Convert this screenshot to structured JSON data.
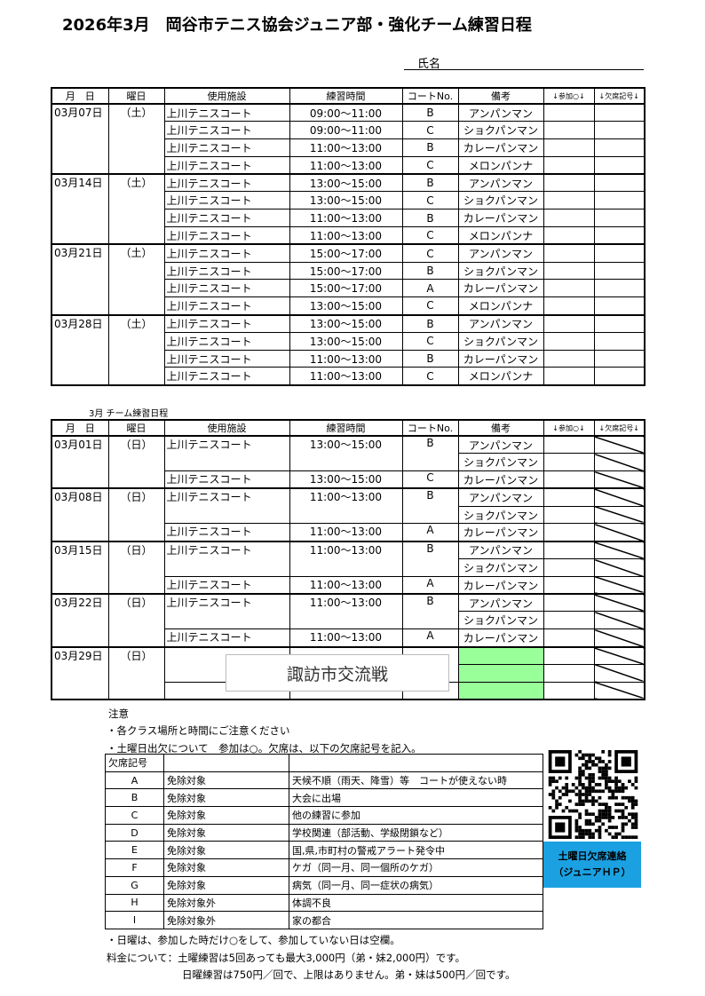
{
  "title": "2026年3月　岡谷市テニス協会ジュニア部・強化チーム練習日程",
  "name_label": "氏名",
  "headers": [
    "月　日",
    "曜日",
    "使用施設",
    "練習時間",
    "コートNo.",
    "備考",
    "↓参加○↓",
    "↓欠席記号↓"
  ],
  "saturday": [
    {
      "date": "03月07日",
      "day": "（土）",
      "rows": [
        {
          "facility": "上川テニスコート",
          "time": "09:00～11:00",
          "court": "B",
          "note": "アンパンマン"
        },
        {
          "facility": "上川テニスコート",
          "time": "09:00～11:00",
          "court": "C",
          "note": "ショクパンマン"
        },
        {
          "facility": "上川テニスコート",
          "time": "11:00～13:00",
          "court": "B",
          "note": "カレーパンマン"
        },
        {
          "facility": "上川テニスコート",
          "time": "11:00～13:00",
          "court": "C",
          "note": "メロンパンナ"
        }
      ]
    },
    {
      "date": "03月14日",
      "day": "（土）",
      "rows": [
        {
          "facility": "上川テニスコート",
          "time": "13:00～15:00",
          "court": "B",
          "note": "アンパンマン"
        },
        {
          "facility": "上川テニスコート",
          "time": "13:00～15:00",
          "court": "C",
          "note": "ショクパンマン"
        },
        {
          "facility": "上川テニスコート",
          "time": "11:00～13:00",
          "court": "B",
          "note": "カレーパンマン"
        },
        {
          "facility": "上川テニスコート",
          "time": "11:00～13:00",
          "court": "C",
          "note": "メロンパンナ"
        }
      ]
    },
    {
      "date": "03月21日",
      "day": "（土）",
      "rows": [
        {
          "facility": "上川テニスコート",
          "time": "15:00～17:00",
          "court": "C",
          "note": "アンパンマン"
        },
        {
          "facility": "上川テニスコート",
          "time": "15:00～17:00",
          "court": "B",
          "note": "ショクパンマン"
        },
        {
          "facility": "上川テニスコート",
          "time": "15:00～17:00",
          "court": "A",
          "note": "カレーパンマン"
        },
        {
          "facility": "上川テニスコート",
          "time": "13:00～15:00",
          "court": "C",
          "note": "メロンパンナ"
        }
      ]
    },
    {
      "date": "03月28日",
      "day": "（土）",
      "rows": [
        {
          "facility": "上川テニスコート",
          "time": "13:00～15:00",
          "court": "B",
          "note": "アンパンマン"
        },
        {
          "facility": "上川テニスコート",
          "time": "13:00～15:00",
          "court": "C",
          "note": "ショクパンマン"
        },
        {
          "facility": "上川テニスコート",
          "time": "11:00～13:00",
          "court": "B",
          "note": "カレーパンマン"
        },
        {
          "facility": "上川テニスコート",
          "time": "11:00～13:00",
          "court": "C",
          "note": "メロンパンナ"
        }
      ]
    }
  ],
  "sunday_title": "3月 チーム練習日程",
  "sunday": [
    {
      "date": "03月01日",
      "day": "（日）",
      "rows": [
        {
          "facility": "上川テニスコート",
          "time": "13:00～15:00",
          "court": "B",
          "note": "アンパンマン"
        },
        {
          "merged": true,
          "note": "ショクパンマン"
        },
        {
          "facility": "上川テニスコート",
          "time": "13:00～15:00",
          "court": "C",
          "note": "カレーパンマン"
        }
      ]
    },
    {
      "date": "03月08日",
      "day": "（日）",
      "rows": [
        {
          "facility": "上川テニスコート",
          "time": "11:00～13:00",
          "court": "B",
          "note": "アンパンマン"
        },
        {
          "merged": true,
          "note": "ショクパンマン"
        },
        {
          "facility": "上川テニスコート",
          "time": "11:00～13:00",
          "court": "A",
          "note": "カレーパンマン"
        }
      ]
    },
    {
      "date": "03月15日",
      "day": "（日）",
      "rows": [
        {
          "facility": "上川テニスコート",
          "time": "11:00～13:00",
          "court": "B",
          "note": "アンパンマン"
        },
        {
          "merged": true,
          "note": "ショクパンマン"
        },
        {
          "facility": "上川テニスコート",
          "time": "11:00～13:00",
          "court": "A",
          "note": "カレーパンマン"
        }
      ]
    },
    {
      "date": "03月22日",
      "day": "（日）",
      "rows": [
        {
          "facility": "上川テニスコート",
          "time": "11:00～13:00",
          "court": "B",
          "note": "アンパンマン"
        },
        {
          "merged": true,
          "note": "ショクパンマン"
        },
        {
          "facility": "上川テニスコート",
          "time": "11:00～13:00",
          "court": "A",
          "note": "カレーパンマン"
        }
      ]
    },
    {
      "date": "03月29日",
      "day": "（日）",
      "highlight": true,
      "rows": [
        {
          "facility": "",
          "time": "",
          "court": "",
          "note": ""
        },
        {
          "merged": true,
          "note": ""
        },
        {
          "facility": "",
          "time": "",
          "court": "",
          "note": ""
        }
      ]
    }
  ],
  "event_label": "諏訪市交流戦",
  "event_color": "#99ff99",
  "notes": {
    "heading": "注意",
    "line1": "・各クラス場所と時間にご注意ください",
    "line2": "・土曜日出欠について　参加は○。欠席は、以下の欠席記号を記入。",
    "line3": "・日曜は、参加した時だけ○をして、参加していない日は空欄。",
    "line4": "料金について：土曜練習は5回あっても最大3,000円（弟・妹2,000円）です。",
    "line5": "日曜練習は750円／回で、上限はありません。弟・妹は500円／回です。"
  },
  "absence": {
    "header": "欠席記号",
    "rows": [
      {
        "code": "A",
        "type": "免除対象",
        "reason": "天候不順（雨天、降雪）等　コートが使えない時"
      },
      {
        "code": "B",
        "type": "免除対象",
        "reason": "大会に出場"
      },
      {
        "code": "C",
        "type": "免除対象",
        "reason": "他の練習に参加"
      },
      {
        "code": "D",
        "type": "免除対象",
        "reason": "学校関連（部活動、学級閉鎖など）"
      },
      {
        "code": "E",
        "type": "免除対象",
        "reason": "国,県,市町村の警戒アラート発令中"
      },
      {
        "code": "F",
        "type": "免除対象",
        "reason": "ケガ（同一月、同一個所のケガ）"
      },
      {
        "code": "G",
        "type": "免除対象",
        "reason": "病気（同一月、同一症状の病気）"
      },
      {
        "code": "H",
        "type": "免除対象外",
        "reason": "体調不良"
      },
      {
        "code": "I",
        "type": "免除対象外",
        "reason": "家の都合"
      }
    ]
  },
  "qr": {
    "icon": "qr-code-icon",
    "button_line1": "土曜日欠席連絡",
    "button_line2": "（ジュニアＨＰ）",
    "button_color": "#1ba1e2"
  }
}
